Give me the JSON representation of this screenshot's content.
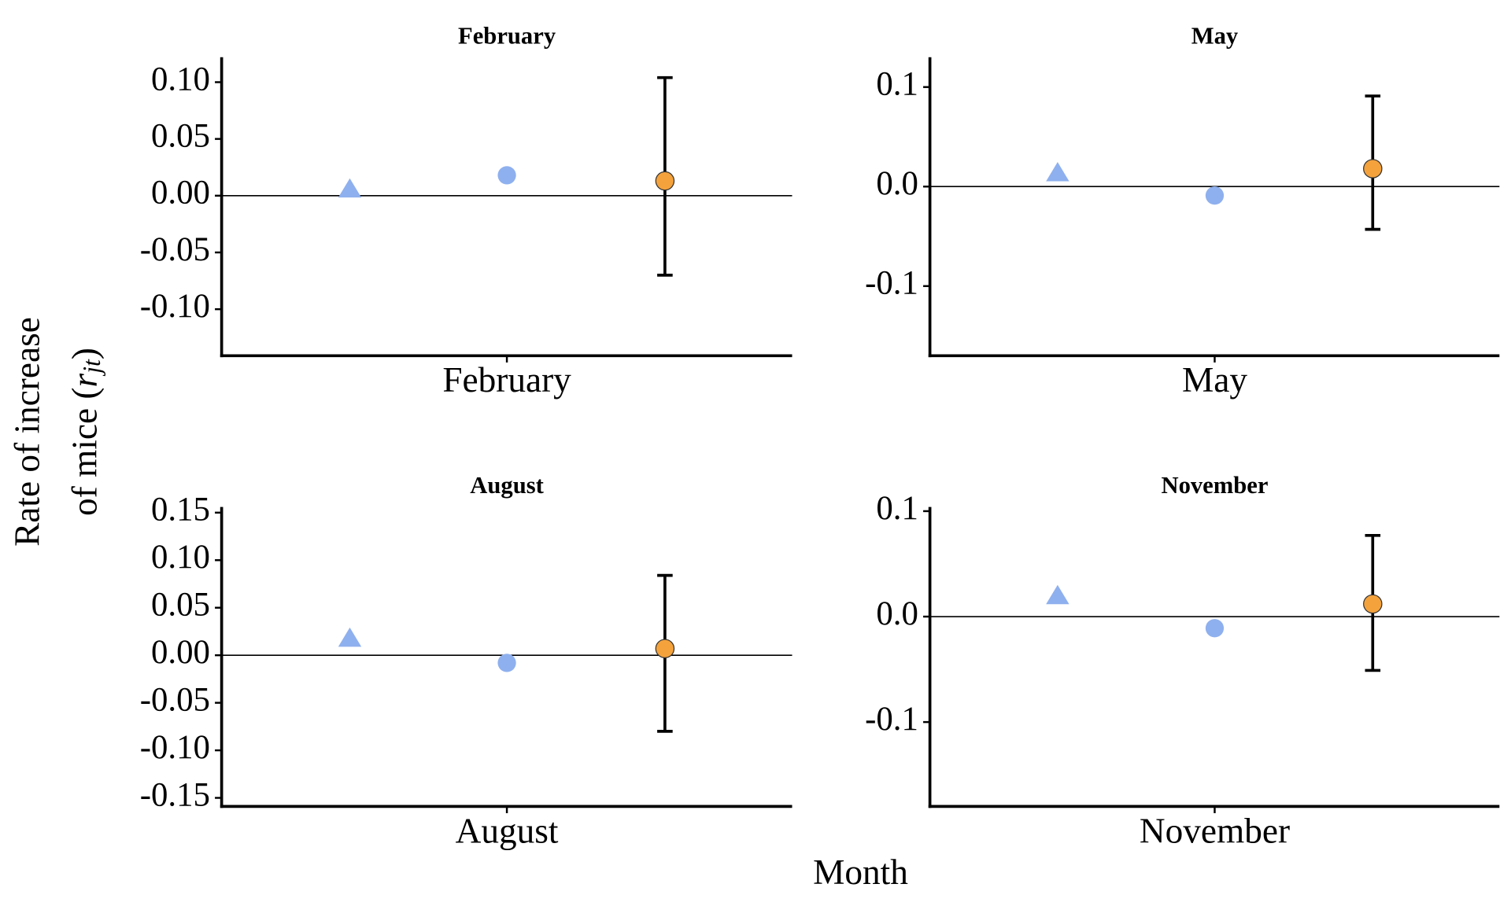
{
  "ylabel": {
    "line1": "Rate of increase",
    "line2": "of mice (",
    "symbol": "r",
    "subscript": "jt",
    "close": ")"
  },
  "xlabel": "Month",
  "chart_data": [
    {
      "type": "scatter",
      "title": "February",
      "categories": [
        "February"
      ],
      "ylim": [
        -0.141,
        0.122
      ],
      "yticks": [
        {
          "value": 0.1,
          "label": "0.10"
        },
        0.05,
        {
          "value": 0,
          "label": "0.00"
        },
        -0.05,
        {
          "value": -0.1,
          "label": "-0.10"
        }
      ],
      "reference_line": 0,
      "series": [
        {
          "marker": "triangle",
          "color": "#8fb0ee",
          "values": [
            0.006
          ]
        },
        {
          "marker": "circle",
          "color": "#8fb0ee",
          "values": [
            0.018
          ]
        },
        {
          "marker": "circle",
          "color": "#f4a23c",
          "values": [
            0.013
          ],
          "lower": [
            -0.07
          ],
          "upper": [
            0.104
          ]
        }
      ]
    },
    {
      "type": "scatter",
      "title": "May",
      "categories": [
        "May"
      ],
      "ylim": [
        -0.17,
        0.13
      ],
      "yticks": [
        0.1,
        {
          "value": 0,
          "label": "0.0"
        },
        -0.1
      ],
      "reference_line": 0,
      "series": [
        {
          "marker": "triangle",
          "color": "#8fb0ee",
          "values": [
            0.014
          ]
        },
        {
          "marker": "circle",
          "color": "#8fb0ee",
          "values": [
            -0.009
          ]
        },
        {
          "marker": "circle",
          "color": "#f4a23c",
          "values": [
            0.018
          ],
          "lower": [
            -0.043
          ],
          "upper": [
            0.091
          ]
        }
      ]
    },
    {
      "type": "scatter",
      "title": "August",
      "categories": [
        "August"
      ],
      "ylim": [
        -0.159,
        0.156
      ],
      "yticks": [
        0.15,
        {
          "value": 0.1,
          "label": "0.10"
        },
        0.05,
        {
          "value": 0,
          "label": "0.00"
        },
        -0.05,
        {
          "value": -0.1,
          "label": "-0.10"
        },
        -0.15
      ],
      "reference_line": 0,
      "series": [
        {
          "marker": "triangle",
          "color": "#8fb0ee",
          "values": [
            0.018
          ]
        },
        {
          "marker": "circle",
          "color": "#8fb0ee",
          "values": [
            -0.008
          ]
        },
        {
          "marker": "circle",
          "color": "#f4a23c",
          "values": [
            0.007
          ],
          "lower": [
            -0.08
          ],
          "upper": [
            0.084
          ]
        }
      ]
    },
    {
      "type": "scatter",
      "title": "November",
      "categories": [
        "November"
      ],
      "ylim": [
        -0.18,
        0.104
      ],
      "yticks": [
        0.1,
        {
          "value": 0,
          "label": "0.0"
        },
        -0.1
      ],
      "reference_line": 0,
      "series": [
        {
          "marker": "triangle",
          "color": "#8fb0ee",
          "values": [
            0.02
          ]
        },
        {
          "marker": "circle",
          "color": "#8fb0ee",
          "values": [
            -0.011
          ]
        },
        {
          "marker": "circle",
          "color": "#f4a23c",
          "values": [
            0.012
          ],
          "lower": [
            -0.051
          ],
          "upper": [
            0.077
          ]
        }
      ]
    }
  ]
}
